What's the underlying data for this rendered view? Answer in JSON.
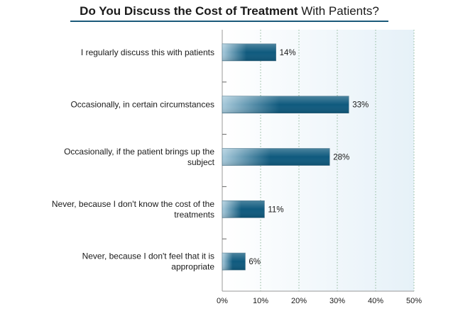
{
  "chart_data": {
    "type": "bar",
    "orientation": "horizontal",
    "title_bold": "Do You Discuss the Cost of Treatment",
    "title_rest": " With Patients?",
    "categories": [
      "I regularly discuss this with patients",
      "Occasionally, in certain circumstances",
      "Occasionally, if the patient brings up the subject",
      "Never, because I don't know the cost of the treatments",
      "Never, because I don't feel that it is appropriate"
    ],
    "category_lines": [
      [
        "I regularly discuss this with patients"
      ],
      [
        "Occasionally, in certain circumstances"
      ],
      [
        "Occasionally, if the patient brings up the",
        "subject"
      ],
      [
        "Never, because I don't know the cost of the",
        "treatments"
      ],
      [
        "Never, because I don't feel that it is",
        "appropriate"
      ]
    ],
    "values": [
      14,
      33,
      28,
      11,
      6
    ],
    "value_labels": [
      "14%",
      "33%",
      "28%",
      "11%",
      "6%"
    ],
    "xlim": [
      0,
      50
    ],
    "xticks": [
      0,
      10,
      20,
      30,
      40,
      50
    ],
    "xtick_labels": [
      "0%",
      "10%",
      "20%",
      "30%",
      "40%",
      "50%"
    ],
    "grid": true,
    "colors": {
      "bar_dark": "#0f5a7e",
      "bar_light": "#a9cbdc",
      "plot_bg_left": "#ffffff",
      "plot_bg_right": "#e6f1f8",
      "grid": "#8fb89a",
      "axis": "#999999",
      "title_rule": "#1b5a7a"
    }
  }
}
